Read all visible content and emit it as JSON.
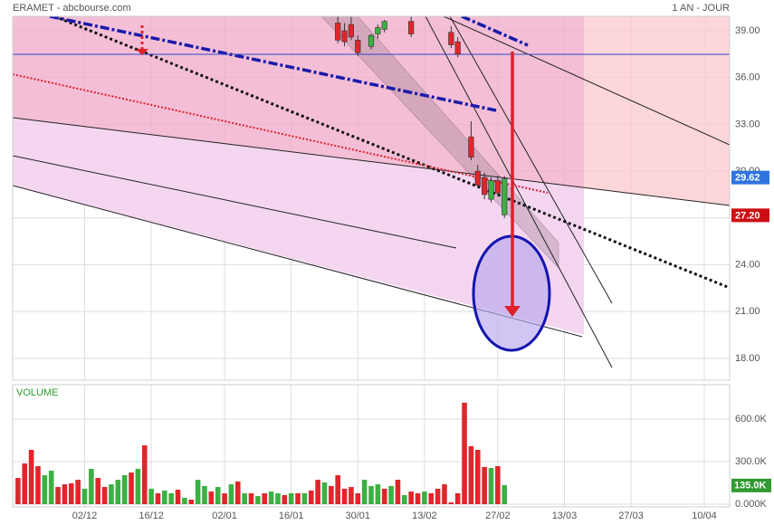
{
  "header": {
    "title": "ERAMET - abcbourse.com",
    "period": "1 AN - JOUR"
  },
  "chart_data": [
    {
      "type": "candlestick",
      "xlim": [
        -0.8,
        106.8
      ],
      "xticks": [
        {
          "value": 10,
          "label": "02/12"
        },
        {
          "value": 20,
          "label": "16/12"
        },
        {
          "value": 31,
          "label": "02/01"
        },
        {
          "value": 41,
          "label": "16/01"
        },
        {
          "value": 51,
          "label": "30/01"
        },
        {
          "value": 61,
          "label": "13/02"
        },
        {
          "value": 72,
          "label": "27/02"
        },
        {
          "value": 82,
          "label": "13/03"
        },
        {
          "value": 92,
          "label": "27/03"
        },
        {
          "value": 103,
          "label": "10/04"
        }
      ],
      "ylim": [
        16.6,
        39.93
      ],
      "yticks": [
        {
          "value": 18,
          "label": "18.00"
        },
        {
          "value": 21,
          "label": "21.00"
        },
        {
          "value": 24,
          "label": "24.00"
        },
        {
          "value": 27,
          "label": "27.00"
        },
        {
          "value": 30,
          "label": "30.00"
        },
        {
          "value": 33,
          "label": "33.00"
        },
        {
          "value": 36,
          "label": "36.00"
        },
        {
          "value": 39,
          "label": "39.00"
        }
      ],
      "grid": true,
      "up_color": "#3cb043",
      "down_color": "#e0262b",
      "x": [
        48,
        49,
        50,
        51,
        53,
        54,
        55,
        59,
        65,
        66,
        68,
        69,
        70,
        71,
        72,
        73
      ],
      "open": [
        39.5,
        39.0,
        39.4,
        38.4,
        38.0,
        38.8,
        39.1,
        39.6,
        38.9,
        38.3,
        32.2,
        30.0,
        29.6,
        28.2,
        29.4,
        27.2
      ],
      "high": [
        39.9,
        39.5,
        39.9,
        38.7,
        38.8,
        39.4,
        39.7,
        39.9,
        39.3,
        38.6,
        33.2,
        30.4,
        29.9,
        29.6,
        29.7,
        29.7
      ],
      "low": [
        38.2,
        38.0,
        38.4,
        37.4,
        37.8,
        38.5,
        38.9,
        38.6,
        37.9,
        37.3,
        30.7,
        28.9,
        28.2,
        28.0,
        28.4,
        27.0
      ],
      "close": [
        38.4,
        38.3,
        38.6,
        37.6,
        38.7,
        39.2,
        39.6,
        38.8,
        38.1,
        37.5,
        30.9,
        29.1,
        28.5,
        29.4,
        28.6,
        29.5
      ],
      "price_labels": [
        {
          "value": 29.62,
          "color": "#2f74e0"
        },
        {
          "value": 27.2,
          "label": "27.20",
          "color": "#cc0f14"
        }
      ]
    },
    {
      "type": "bar",
      "title": "VOLUME",
      "xlim": [
        -0.8,
        106.8
      ],
      "ylim": [
        0,
        842000
      ],
      "yticks": [
        {
          "value": 0,
          "label": "0.000K"
        },
        {
          "value": 300000,
          "label": "300.0K"
        },
        {
          "value": 600000,
          "label": "600.0K"
        }
      ],
      "grid": true,
      "x": [
        0,
        1,
        2,
        3,
        4,
        5,
        6,
        7,
        8,
        9,
        10,
        11,
        12,
        13,
        14,
        15,
        16,
        17,
        18,
        19,
        20,
        21,
        22,
        23,
        24,
        25,
        26,
        27,
        28,
        29,
        30,
        31,
        32,
        33,
        34,
        35,
        36,
        37,
        38,
        39,
        40,
        41,
        42,
        43,
        44,
        45,
        46,
        47,
        48,
        49,
        50,
        51,
        52,
        53,
        54,
        55,
        56,
        57,
        58,
        59,
        60,
        61,
        62,
        63,
        64,
        65,
        66,
        67,
        68,
        69,
        70,
        71,
        72,
        73
      ],
      "values": [
        185000,
        287000,
        383000,
        268000,
        204000,
        236000,
        121000,
        140000,
        147000,
        172000,
        109000,
        249000,
        185000,
        121000,
        140000,
        172000,
        204000,
        223000,
        249000,
        415000,
        109000,
        77000,
        96000,
        77000,
        102000,
        45000,
        32000,
        172000,
        128000,
        89000,
        121000,
        77000,
        140000,
        160000,
        77000,
        77000,
        57000,
        77000,
        89000,
        77000,
        64000,
        77000,
        77000,
        77000,
        96000,
        172000,
        153000,
        128000,
        204000,
        109000,
        121000,
        77000,
        172000,
        128000,
        140000,
        109000,
        128000,
        172000,
        64000,
        89000,
        77000,
        89000,
        77000,
        109000,
        140000,
        13000,
        77000,
        715000,
        409000,
        383000,
        262000,
        255000,
        268000,
        135000
      ],
      "colors": [
        "#e0262b",
        "#e0262b",
        "#e0262b",
        "#e0262b",
        "#3cb043",
        "#3cb043",
        "#e0262b",
        "#e0262b",
        "#e0262b",
        "#e0262b",
        "#3cb043",
        "#3cb043",
        "#e0262b",
        "#e0262b",
        "#3cb043",
        "#3cb043",
        "#3cb043",
        "#e0262b",
        "#3cb043",
        "#e0262b",
        "#3cb043",
        "#e0262b",
        "#3cb043",
        "#3cb043",
        "#e0262b",
        "#3cb043",
        "#e0262b",
        "#3cb043",
        "#3cb043",
        "#e0262b",
        "#3cb043",
        "#e0262b",
        "#3cb043",
        "#e0262b",
        "#3cb043",
        "#e0262b",
        "#3cb043",
        "#e0262b",
        "#3cb043",
        "#3cb043",
        "#e0262b",
        "#3cb043",
        "#e0262b",
        "#3cb043",
        "#e0262b",
        "#e0262b",
        "#3cb043",
        "#e0262b",
        "#e0262b",
        "#e0262b",
        "#e0262b",
        "#e0262b",
        "#3cb043",
        "#3cb043",
        "#3cb043",
        "#e0262b",
        "#3cb043",
        "#e0262b",
        "#3cb043",
        "#e0262b",
        "#e0262b",
        "#3cb043",
        "#e0262b",
        "#e0262b",
        "#e0262b",
        "#e0262b",
        "#e0262b",
        "#e0262b",
        "#e0262b",
        "#e0262b",
        "#e0262b",
        "#3cb043",
        "#e0262b",
        "#3cb043"
      ],
      "last_label": {
        "value": 135000,
        "label": "135.0K",
        "color": "#2f9a2f"
      }
    }
  ]
}
